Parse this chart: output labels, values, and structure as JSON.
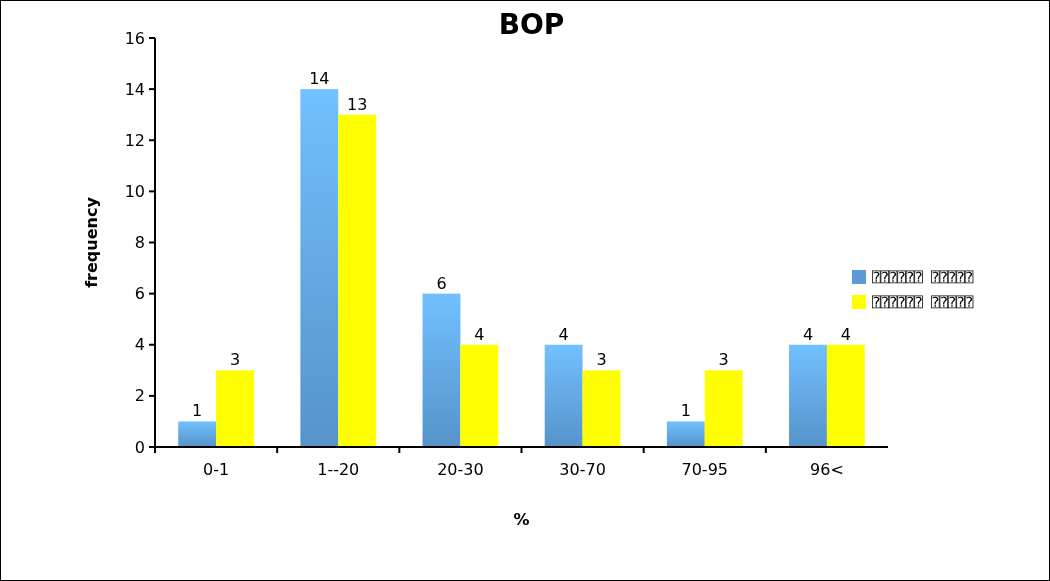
{
  "chart_data": {
    "type": "bar",
    "title": "BOP",
    "xlabel": "%",
    "ylabel": "frequency",
    "categories": [
      "0-1",
      "1--20",
      "20-30",
      "30-70",
      "70-95",
      "96<"
    ],
    "series": [
      {
        "name": "⍰⍰⍰⍰⍰⍰ ⍰⍰⍰⍰⍰",
        "color": "#5b9bd5",
        "values": [
          1,
          14,
          6,
          4,
          1,
          4
        ]
      },
      {
        "name": "⍰⍰⍰⍰⍰⍰ ⍰⍰⍰⍰⍰",
        "color": "#ffff00",
        "values": [
          3,
          13,
          4,
          3,
          3,
          4
        ]
      }
    ],
    "ylim": [
      0,
      16
    ],
    "yticks": [
      0,
      2,
      4,
      6,
      8,
      10,
      12,
      14,
      16
    ],
    "grid": false,
    "legend": "right",
    "data_labels": true
  }
}
